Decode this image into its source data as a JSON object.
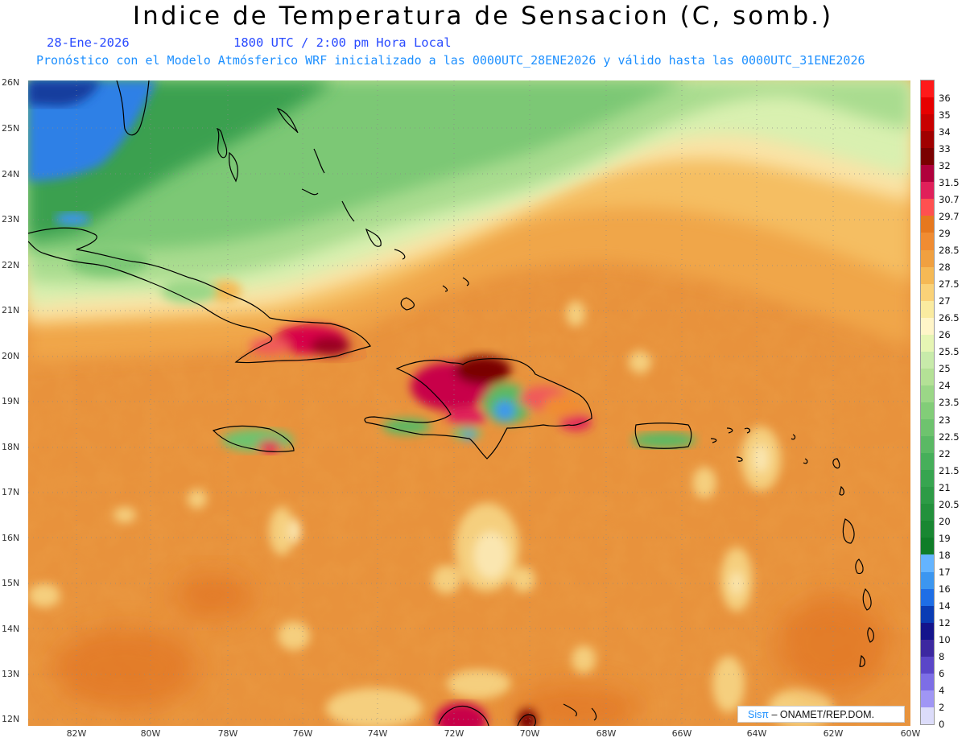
{
  "title": "Indice de Temperatura de Sensacion (C, somb.)",
  "date": "28-Ene-2026",
  "time": "1800 UTC / 2:00 pm Hora Local",
  "subtitle": "Pronóstico con el Modelo Atmósferico WRF inicializado a las 0000UTC_28ENE2026 y válido hasta las  0000UTC_31ENE2026",
  "lat_labels": [
    "26N",
    "25N",
    "24N",
    "23N",
    "22N",
    "21N",
    "20N",
    "19N",
    "18N",
    "17N",
    "16N",
    "15N",
    "14N",
    "13N",
    "12N"
  ],
  "lon_labels": [
    "82W",
    "80W",
    "78W",
    "76W",
    "74W",
    "72W",
    "70W",
    "68W",
    "66W",
    "64W",
    "62W",
    "60W"
  ],
  "legend": {
    "levels": [
      "36",
      "35",
      "34",
      "33",
      "32",
      "31.5",
      "30.7",
      "29.7",
      "29",
      "28.5",
      "28",
      "27.5",
      "27",
      "26.5",
      "26",
      "25.5",
      "25",
      "24",
      "23.5",
      "23",
      "22.5",
      "22",
      "21.5",
      "21",
      "20.5",
      "20",
      "19",
      "18",
      "17",
      "16",
      "14",
      "12",
      "10",
      "8",
      "6",
      "4",
      "2",
      "0"
    ],
    "colors": [
      "#ff1a1a",
      "#e60000",
      "#c80000",
      "#a00000",
      "#7a0000",
      "#b0003c",
      "#e0205a",
      "#ff5050",
      "#e6781e",
      "#f08c32",
      "#f0a040",
      "#f5b955",
      "#fad278",
      "#faeba0",
      "#fff5c8",
      "#e6f5b4",
      "#c8ebaa",
      "#b4e196",
      "#9bd787",
      "#82cd78",
      "#6ec36e",
      "#5ab964",
      "#46af5a",
      "#37a550",
      "#2d9b46",
      "#23913c",
      "#198732",
      "#0f7d28",
      "#64b4ff",
      "#3c96f0",
      "#1e6ee6",
      "#0a3cb4",
      "#14148c",
      "#3c28a0",
      "#5a46c8",
      "#7d6ee6",
      "#a096f5",
      "#dcdcfa"
    ]
  },
  "credit": {
    "logo": "Sisπ",
    "text": " – ONAMET/REP.DOM."
  }
}
